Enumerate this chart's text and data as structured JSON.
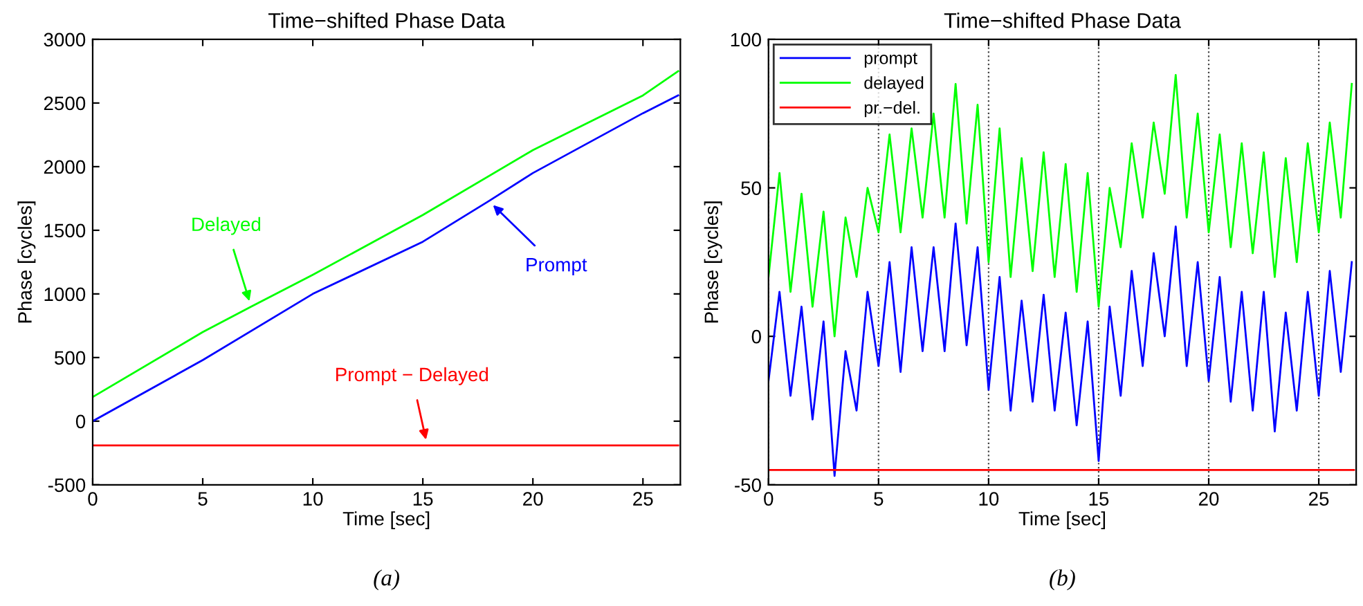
{
  "chart_data": [
    {
      "type": "line",
      "title": "Time−shifted Phase Data",
      "xlabel": "Time [sec]",
      "ylabel": "Phase [cycles]",
      "xlim": [
        0,
        26.7
      ],
      "ylim": [
        -500,
        3000
      ],
      "xticks": [
        0,
        5,
        10,
        15,
        20,
        25
      ],
      "yticks": [
        -500,
        0,
        500,
        1000,
        1500,
        2000,
        2500,
        3000
      ],
      "grid": false,
      "legend": false,
      "series": [
        {
          "color": "#0000ff",
          "x": [
            0,
            5,
            10,
            15,
            18,
            20,
            25,
            26.6
          ],
          "values": [
            0,
            480,
            1000,
            1410,
            1730,
            1950,
            2420,
            2560
          ]
        },
        {
          "color": "#00ff00",
          "x": [
            0,
            5,
            7.2,
            10,
            15,
            20,
            25,
            26.6
          ],
          "values": [
            190,
            700,
            900,
            1150,
            1620,
            2130,
            2560,
            2750
          ]
        },
        {
          "color": "#ff0000",
          "x": [
            0,
            15.2,
            26.6
          ],
          "values": [
            -190,
            -190,
            -190
          ]
        }
      ],
      "annotations": [
        {
          "text": "Prompt",
          "x": 18,
          "y": 1730
        },
        {
          "text": "Delayed",
          "x": 7.2,
          "y": 900
        },
        {
          "text": "Prompt − Delayed",
          "x": 15.2,
          "y": -190
        },
        "(a)"
      ]
    },
    {
      "type": "line",
      "title": "Time−shifted Phase Data",
      "xlabel": "Time [sec]",
      "ylabel": "Phase [cycles]",
      "xlim": [
        0,
        26.7
      ],
      "ylim": [
        -50,
        100
      ],
      "xticks": [
        0,
        5,
        10,
        15,
        20,
        25
      ],
      "yticks": [
        -50,
        0,
        50,
        100
      ],
      "grid": "x",
      "legend": "top left",
      "series": [
        {
          "name": "prompt",
          "color": "#0000ff",
          "x": [
            0,
            0.5,
            1,
            1.5,
            2,
            2.5,
            3,
            3.5,
            4,
            4.5,
            5,
            5.5,
            6,
            6.5,
            7,
            7.5,
            8,
            8.5,
            9,
            9.5,
            10,
            10.5,
            11,
            11.5,
            12,
            12.5,
            13,
            13.5,
            14,
            14.5,
            15,
            15.5,
            16,
            16.5,
            17,
            17.5,
            18,
            18.5,
            19,
            19.5,
            20,
            20.5,
            21,
            21.5,
            22,
            22.5,
            23,
            23.5,
            24,
            24.5,
            25,
            25.5,
            26,
            26.5
          ],
          "values": [
            -15,
            15,
            -20,
            10,
            -28,
            5,
            -47,
            -5,
            -25,
            15,
            -10,
            25,
            -12,
            30,
            -5,
            30,
            -5,
            38,
            -3,
            30,
            -18,
            20,
            -25,
            12,
            -22,
            14,
            -25,
            8,
            -30,
            5,
            -42,
            10,
            -20,
            22,
            -10,
            28,
            0,
            37,
            -10,
            25,
            -15,
            20,
            -22,
            15,
            -25,
            15,
            -32,
            8,
            -25,
            15,
            -20,
            22,
            -12,
            25
          ]
        },
        {
          "name": "delayed",
          "color": "#00ff00",
          "x": [
            0,
            0.5,
            1,
            1.5,
            2,
            2.5,
            3,
            3.5,
            4,
            4.5,
            5,
            5.5,
            6,
            6.5,
            7,
            7.5,
            8,
            8.5,
            9,
            9.5,
            10,
            10.5,
            11,
            11.5,
            12,
            12.5,
            13,
            13.5,
            14,
            14.5,
            15,
            15.5,
            16,
            16.5,
            17,
            17.5,
            18,
            18.5,
            19,
            19.5,
            20,
            20.5,
            21,
            21.5,
            22,
            22.5,
            23,
            23.5,
            24,
            24.5,
            25,
            25.5,
            26,
            26.5
          ],
          "values": [
            20,
            55,
            15,
            48,
            10,
            42,
            0,
            40,
            20,
            50,
            35,
            68,
            35,
            70,
            40,
            75,
            40,
            85,
            38,
            78,
            25,
            70,
            20,
            60,
            22,
            62,
            20,
            58,
            15,
            55,
            10,
            50,
            30,
            65,
            40,
            72,
            48,
            88,
            40,
            75,
            35,
            68,
            30,
            65,
            28,
            62,
            20,
            60,
            25,
            65,
            35,
            72,
            40,
            85
          ]
        },
        {
          "name": "pr.−del.",
          "color": "#ff0000",
          "x": [
            0,
            26.6
          ],
          "values": [
            -45,
            -45
          ]
        }
      ],
      "annotations": [
        "(b)"
      ]
    }
  ]
}
